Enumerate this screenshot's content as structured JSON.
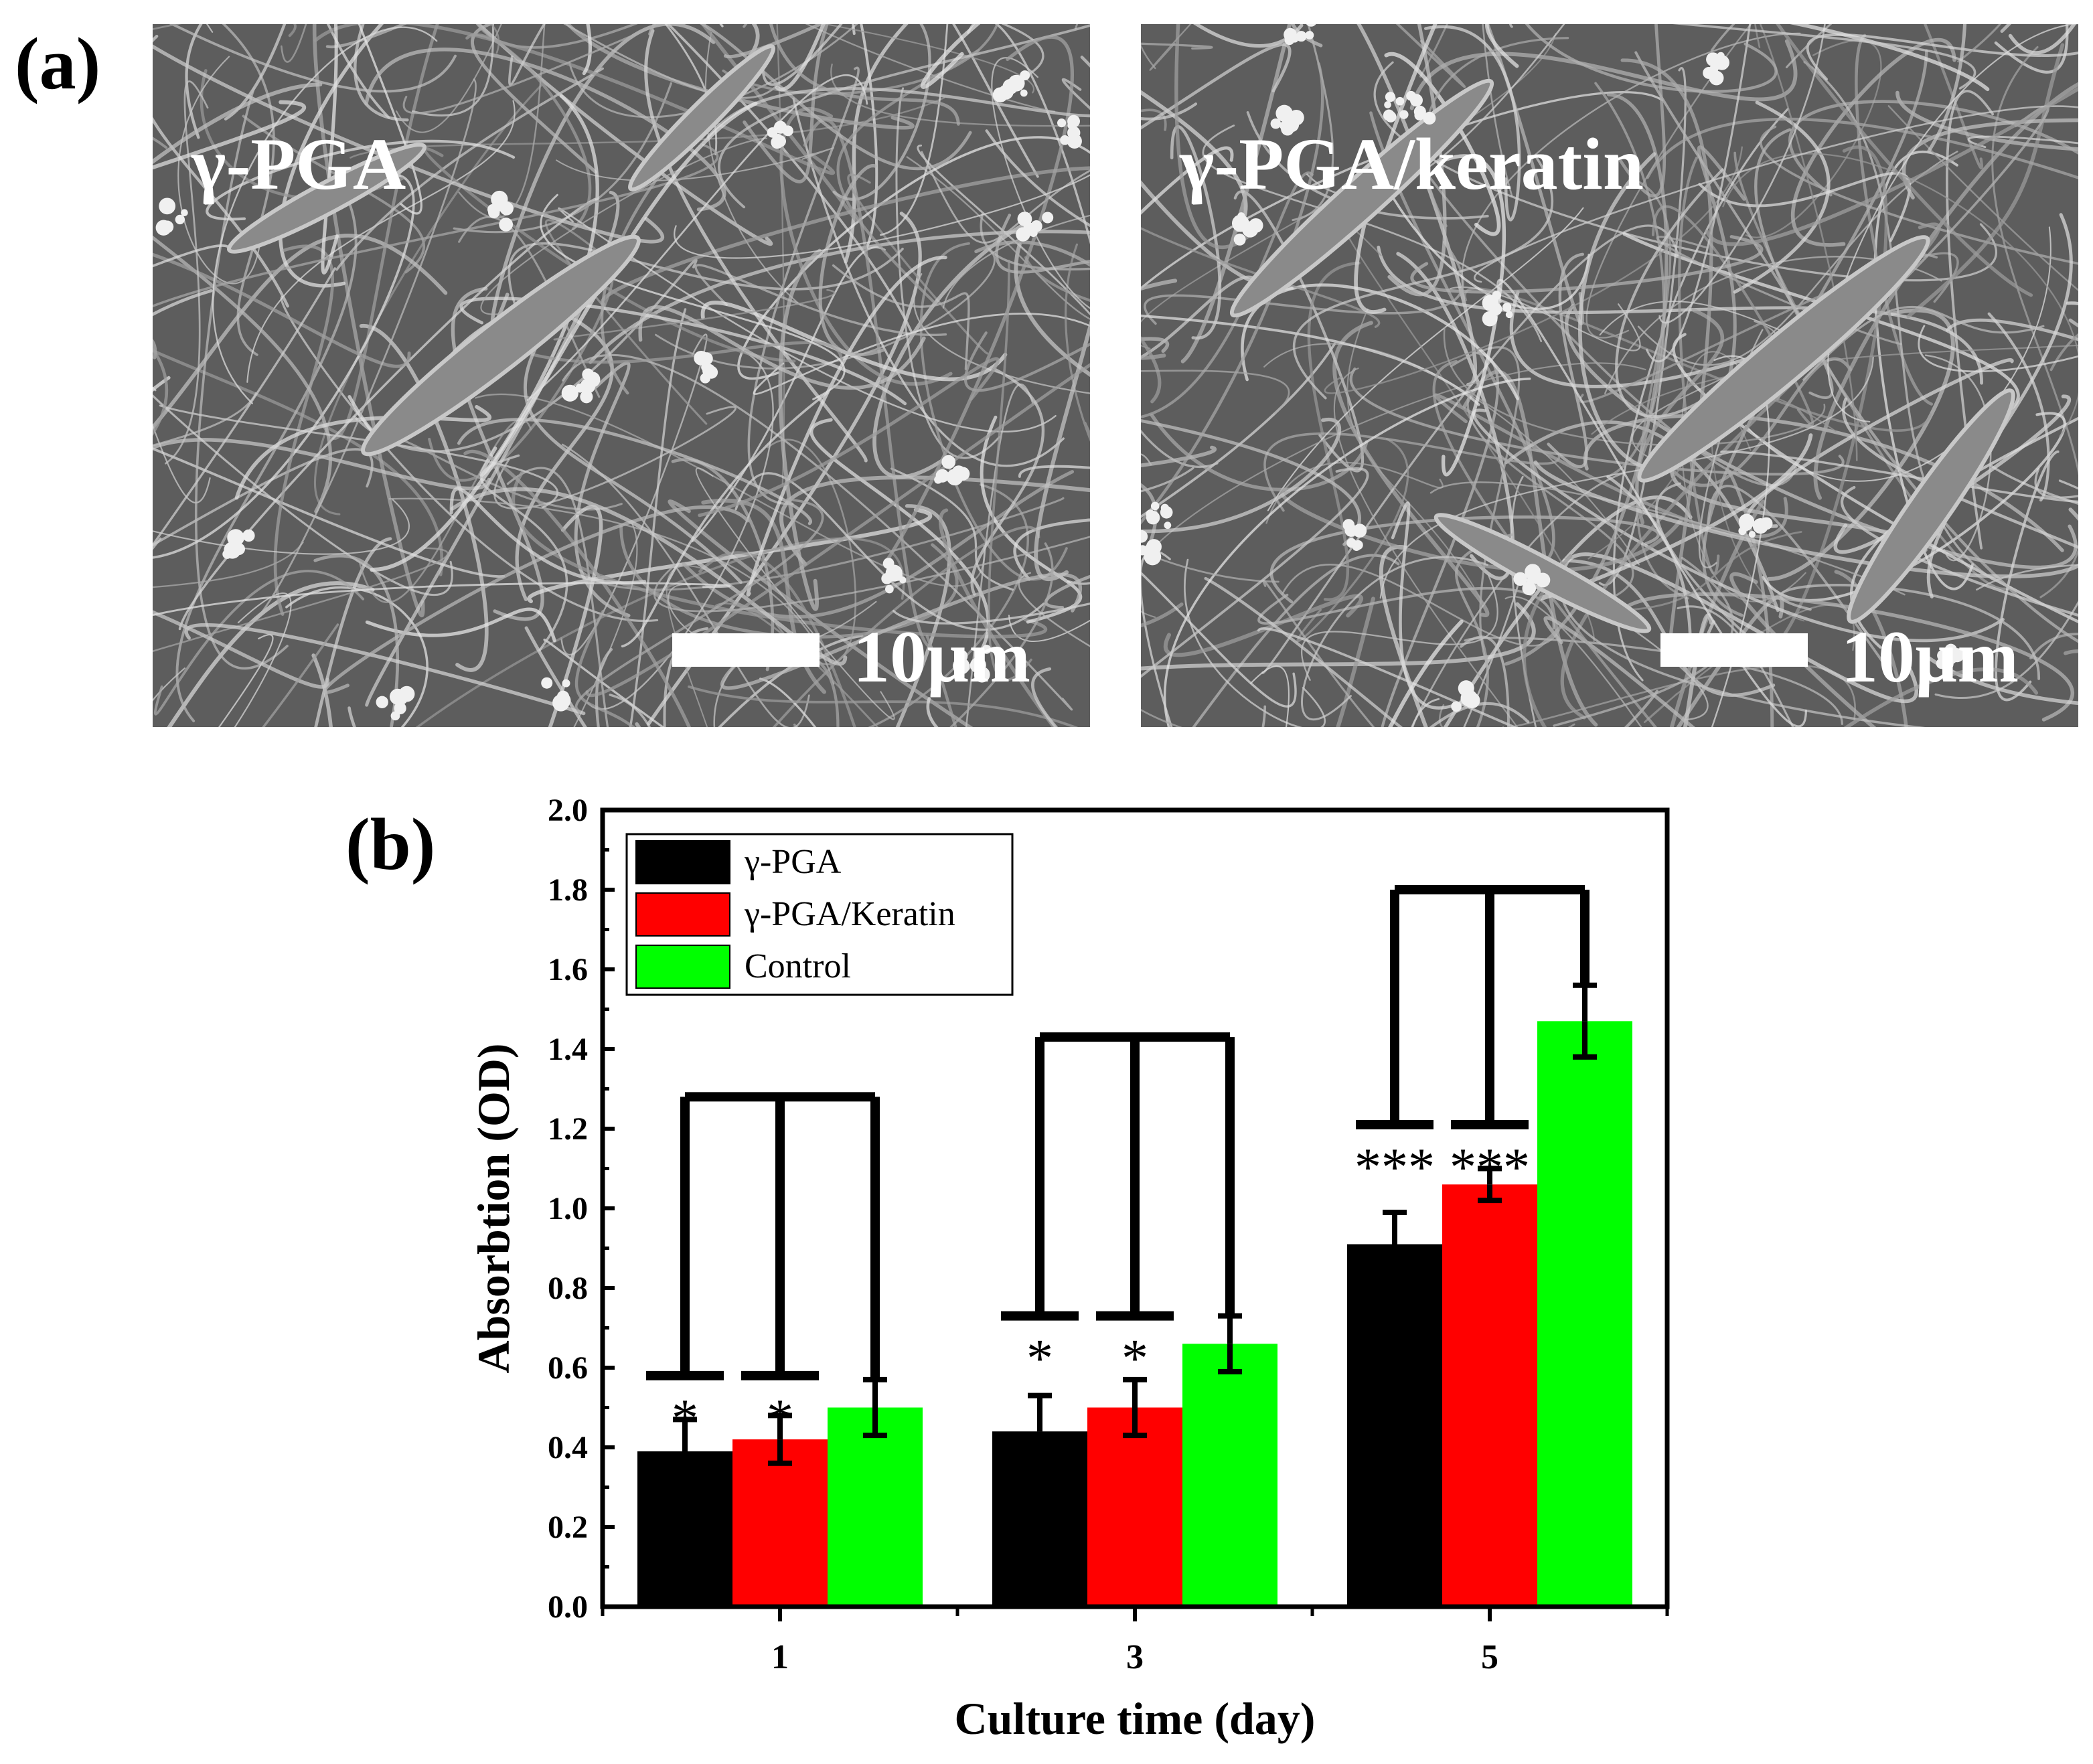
{
  "panel_a": {
    "label": "(a)",
    "images": [
      {
        "title": "γ-PGA",
        "scale_label": "10µm"
      },
      {
        "title": "γ-PGA/keratin",
        "scale_label": "10µm"
      }
    ]
  },
  "panel_b": {
    "label": "(b)"
  },
  "colors": {
    "gpga": "#000000",
    "keratin": "#ff0000",
    "control": "#00ff00"
  },
  "chart_data": {
    "type": "bar",
    "categories": [
      "1",
      "3",
      "5"
    ],
    "xlabel": "Culture time (day)",
    "ylabel": "Absorbtion (OD)",
    "ylim": [
      0,
      2.0
    ],
    "yticks": [
      "0.0",
      "0.2",
      "0.4",
      "0.6",
      "0.8",
      "1.0",
      "1.2",
      "1.4",
      "1.6",
      "1.8",
      "2.0"
    ],
    "legend_position": "top-left",
    "series": [
      {
        "name": "γ-PGA",
        "values": [
          0.39,
          0.44,
          0.91
        ],
        "errors": [
          0.08,
          0.09,
          0.08
        ]
      },
      {
        "name": "γ-PGA/Keratin",
        "values": [
          0.42,
          0.5,
          1.06
        ],
        "errors": [
          0.06,
          0.07,
          0.04
        ]
      },
      {
        "name": "Control",
        "values": [
          0.5,
          0.66,
          1.47
        ],
        "errors": [
          0.07,
          0.07,
          0.09
        ]
      }
    ],
    "significance": [
      {
        "category": "1",
        "bracket_y": 1.28,
        "marks": [
          "*",
          "*"
        ],
        "mark_y": [
          0.58,
          0.58
        ]
      },
      {
        "category": "3",
        "bracket_y": 1.43,
        "marks": [
          "*",
          "*"
        ],
        "mark_y": [
          0.73,
          0.73
        ]
      },
      {
        "category": "5",
        "bracket_y": 1.8,
        "marks": [
          "***",
          "***"
        ],
        "mark_y": [
          1.21,
          1.21
        ]
      }
    ]
  }
}
